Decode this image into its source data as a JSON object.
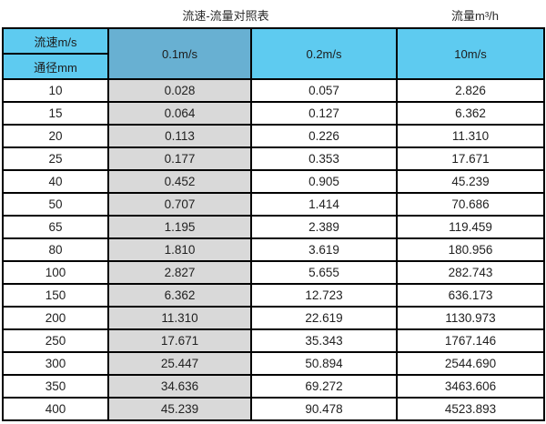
{
  "header": {
    "title": "流速-流量对照表",
    "unit_label": "流量m³/h"
  },
  "chart_data": {
    "type": "table",
    "title": "流速-流量对照表",
    "unit": "流量m³/h",
    "corner": {
      "top": "流速m/s",
      "bottom": "通径mm"
    },
    "columns": [
      "0.1m/s",
      "0.2m/s",
      "10m/s"
    ],
    "rows": [
      {
        "dn": "10",
        "values": [
          "0.028",
          "0.057",
          "2.826"
        ]
      },
      {
        "dn": "15",
        "values": [
          "0.064",
          "0.127",
          "6.362"
        ]
      },
      {
        "dn": "20",
        "values": [
          "0.113",
          "0.226",
          "11.310"
        ]
      },
      {
        "dn": "25",
        "values": [
          "0.177",
          "0.353",
          "17.671"
        ]
      },
      {
        "dn": "40",
        "values": [
          "0.452",
          "0.905",
          "45.239"
        ]
      },
      {
        "dn": "50",
        "values": [
          "0.707",
          "1.414",
          "70.686"
        ]
      },
      {
        "dn": "65",
        "values": [
          "1.195",
          "2.389",
          "119.459"
        ]
      },
      {
        "dn": "80",
        "values": [
          "1.810",
          "3.619",
          "180.956"
        ]
      },
      {
        "dn": "100",
        "values": [
          "2.827",
          "5.655",
          "282.743"
        ]
      },
      {
        "dn": "150",
        "values": [
          "6.362",
          "12.723",
          "636.173"
        ]
      },
      {
        "dn": "200",
        "values": [
          "11.310",
          "22.619",
          "1130.973"
        ]
      },
      {
        "dn": "250",
        "values": [
          "17.671",
          "35.343",
          "1767.146"
        ]
      },
      {
        "dn": "300",
        "values": [
          "25.447",
          "50.894",
          "2544.690"
        ]
      },
      {
        "dn": "350",
        "values": [
          "34.636",
          "69.272",
          "3463.606"
        ]
      },
      {
        "dn": "400",
        "values": [
          "45.239",
          "90.478",
          "4523.893"
        ]
      }
    ]
  },
  "colors": {
    "header_cyan": "#5ecbf0",
    "header_blue": "#68b0d2",
    "col1_gray": "#d9d9d9",
    "border": "#000000"
  }
}
